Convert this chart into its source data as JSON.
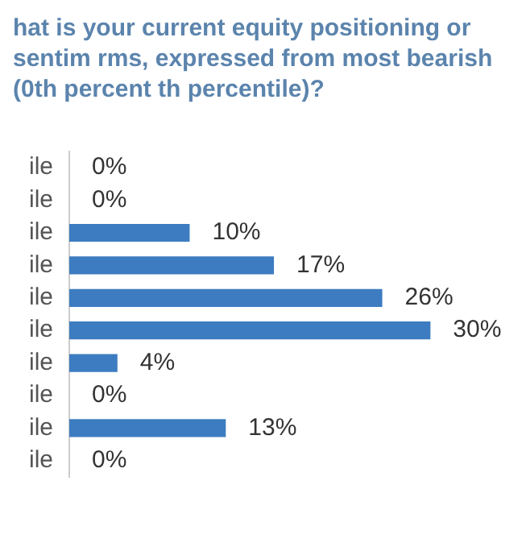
{
  "chart_data": {
    "type": "bar",
    "orientation": "horizontal",
    "title": "hat is your current equity positioning or sentim rms, expressed from most bearish (0th percent th percentile)?",
    "categories": [
      "ile",
      "ile",
      "ile",
      "ile",
      "ile",
      "ile",
      "ile",
      "ile",
      "ile",
      "ile"
    ],
    "values": [
      0,
      0,
      10,
      17,
      26,
      30,
      4,
      0,
      13,
      0
    ],
    "value_labels": [
      "0%",
      "0%",
      "10%",
      "17%",
      "26%",
      "30%",
      "4%",
      "0%",
      "13%",
      "0%"
    ],
    "color": "#3d7cc0",
    "legend": false
  }
}
